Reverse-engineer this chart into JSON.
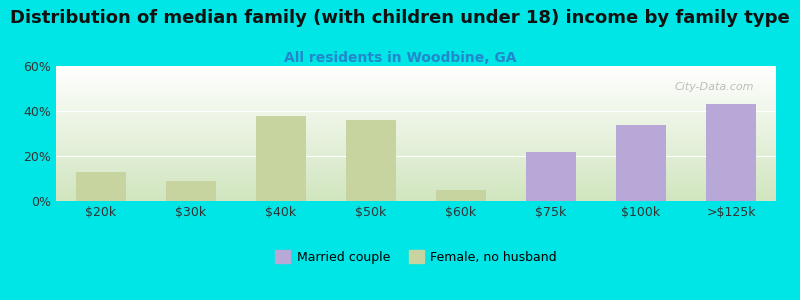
{
  "title": "Distribution of median family (with children under 18) income by family type",
  "subtitle": "All residents in Woodbine, GA",
  "categories": [
    "$20k",
    "$30k",
    "$40k",
    "$50k",
    "$60k",
    "$75k",
    "$100k",
    ">$125k"
  ],
  "married_couple": [
    0,
    0,
    0,
    0,
    0,
    22,
    34,
    43
  ],
  "female_no_husband": [
    13,
    9,
    38,
    36,
    5,
    0,
    0,
    0
  ],
  "married_color": "#b8a8d8",
  "female_color": "#c8d4a0",
  "background_color": "#00e5e5",
  "ylim": [
    0,
    60
  ],
  "yticks": [
    0,
    20,
    40,
    60
  ],
  "ytick_labels": [
    "0%",
    "20%",
    "40%",
    "60%"
  ],
  "bar_width": 0.55,
  "title_fontsize": 13,
  "subtitle_fontsize": 10,
  "subtitle_color": "#2288cc",
  "watermark": "City-Data.com"
}
